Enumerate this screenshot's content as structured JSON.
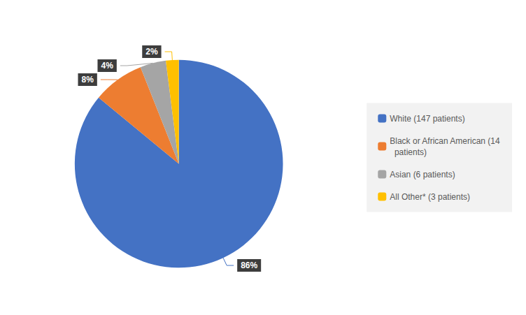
{
  "chart_data": {
    "type": "pie",
    "categories": [
      "White (147 patients)",
      "Black or African American (14\n  patients)",
      "Asian (6 patients)",
      "All Other* (3 patients)"
    ],
    "values": [
      86,
      8,
      4,
      2
    ],
    "value_labels": [
      "86%",
      "8%",
      "4%",
      "2%"
    ],
    "colors": [
      "#4472C4",
      "#ED7D31",
      "#A5A5A5",
      "#FFC000"
    ],
    "data_labels": true,
    "legend": "right"
  }
}
